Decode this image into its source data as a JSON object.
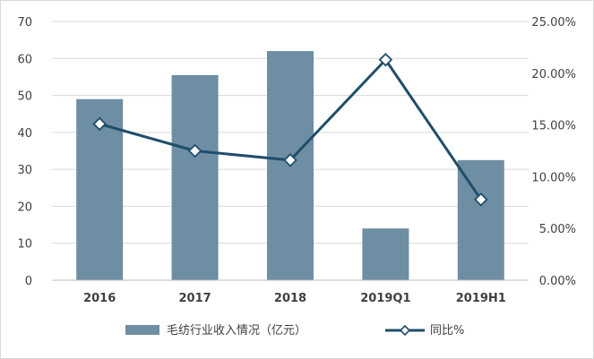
{
  "chart_data": {
    "type": "bar+line",
    "categories": [
      "2016",
      "2017",
      "2018",
      "2019Q1",
      "2019H1"
    ],
    "series": [
      {
        "name": "毛纺行业收入情况（亿元）",
        "type": "bar",
        "axis": "left",
        "color": "#6e8ea3",
        "values": [
          49,
          55.5,
          62,
          14,
          32.5
        ]
      },
      {
        "name": "同比%",
        "type": "line",
        "axis": "right",
        "color": "#1f4e6b",
        "values": [
          15.1,
          12.5,
          11.6,
          21.3,
          7.8
        ]
      }
    ],
    "y_left": {
      "ylim": [
        0,
        70
      ],
      "ticks": [
        0,
        10,
        20,
        30,
        40,
        50,
        60,
        70
      ],
      "tick_labels": [
        "0",
        "10",
        "20",
        "30",
        "40",
        "50",
        "60",
        "70"
      ]
    },
    "y_right": {
      "ylim": [
        0,
        25
      ],
      "ticks": [
        0,
        5,
        10,
        15,
        20,
        25
      ],
      "tick_labels": [
        "0.00%",
        "5.00%",
        "10.00%",
        "15.00%",
        "20.00%",
        "25.00%"
      ]
    },
    "grid": true,
    "legend_position": "bottom"
  }
}
